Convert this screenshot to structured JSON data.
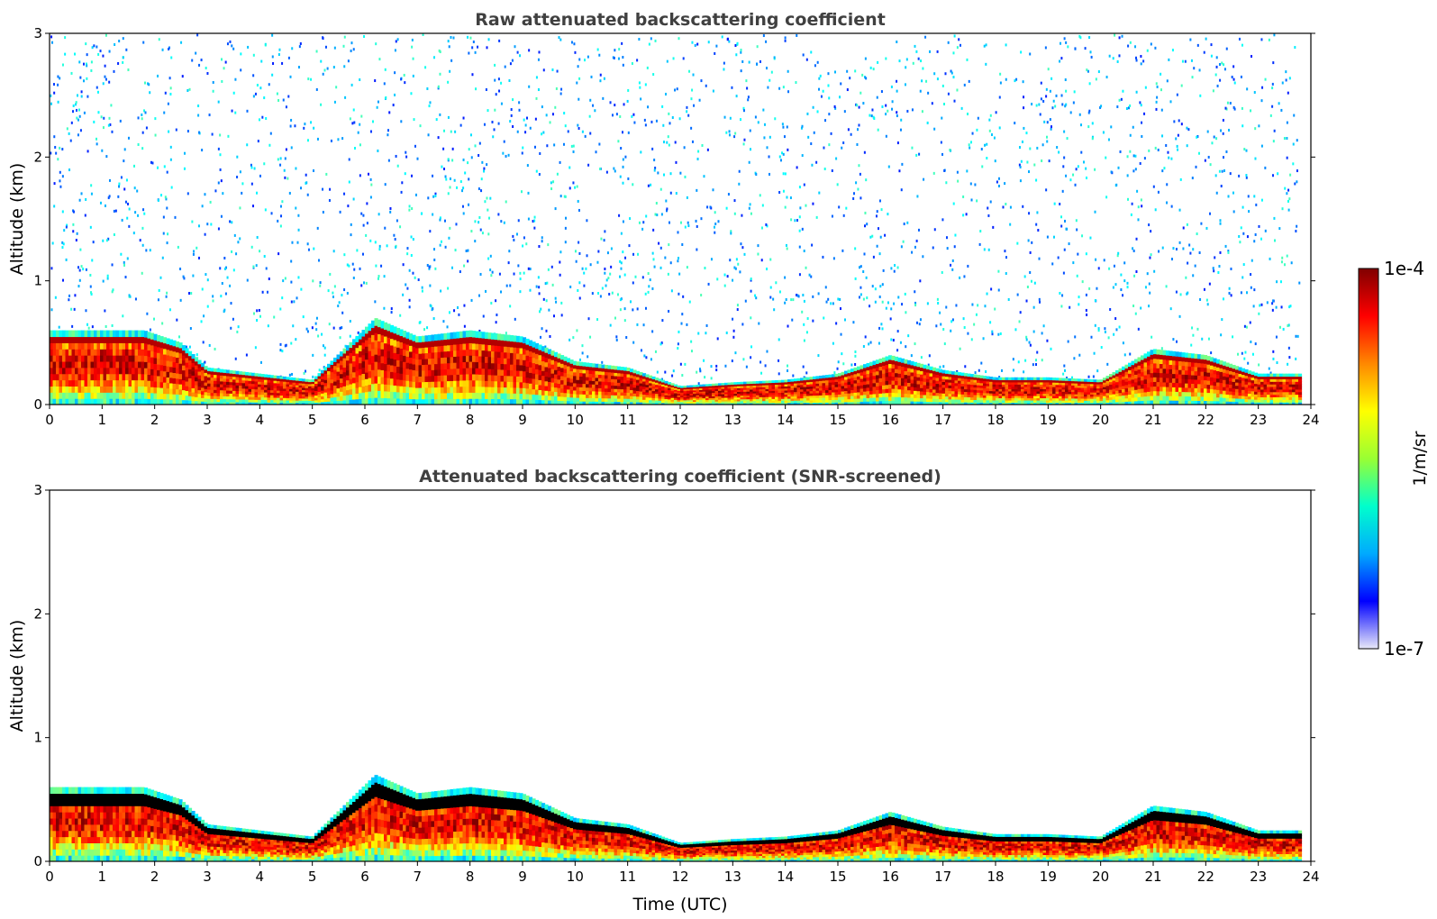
{
  "chart_data": [
    {
      "type": "heatmap",
      "title": "Raw attenuated backscattering coefficient",
      "xlabel": "",
      "ylabel": "Altitude (km)",
      "xlim": [
        0,
        24
      ],
      "ylim": [
        0,
        3
      ],
      "xticks": [
        "0",
        "1",
        "2",
        "3",
        "4",
        "5",
        "6",
        "7",
        "8",
        "9",
        "10",
        "11",
        "12",
        "13",
        "14",
        "15",
        "16",
        "17",
        "18",
        "19",
        "20",
        "21",
        "22",
        "23",
        "24"
      ],
      "yticks": [
        "0",
        "1",
        "2",
        "3"
      ],
      "colorscale": "jet (log)",
      "boundary_layer_top_km": {
        "time_utc": [
          0,
          1,
          1.8,
          2.5,
          3,
          4,
          5,
          6.2,
          7,
          8,
          9,
          10,
          11,
          12,
          13,
          14,
          15,
          16,
          17,
          18,
          19,
          20,
          21,
          22,
          23,
          23.8
        ],
        "altitude": [
          0.6,
          0.6,
          0.6,
          0.5,
          0.3,
          0.25,
          0.2,
          0.7,
          0.55,
          0.6,
          0.55,
          0.35,
          0.3,
          0.15,
          0.18,
          0.2,
          0.25,
          0.4,
          0.28,
          0.22,
          0.22,
          0.2,
          0.45,
          0.4,
          0.25,
          0.25
        ]
      },
      "noise_above_boundary_layer": true
    },
    {
      "type": "heatmap",
      "title": "Attenuated backscattering coefficient (SNR-screened)",
      "xlabel": "Time (UTC)",
      "ylabel": "Altitude (km)",
      "xlim": [
        0,
        24
      ],
      "ylim": [
        0,
        3
      ],
      "xticks": [
        "0",
        "1",
        "2",
        "3",
        "4",
        "5",
        "6",
        "7",
        "8",
        "9",
        "10",
        "11",
        "12",
        "13",
        "14",
        "15",
        "16",
        "17",
        "18",
        "19",
        "20",
        "21",
        "22",
        "23",
        "24"
      ],
      "yticks": [
        "0",
        "1",
        "2",
        "3"
      ],
      "colorscale": "jet (log)",
      "boundary_layer_top_km": {
        "time_utc": [
          0,
          1,
          1.8,
          2.5,
          3,
          4,
          5,
          6.2,
          7,
          8,
          9,
          10,
          11,
          12,
          13,
          14,
          15,
          16,
          17,
          18,
          19,
          20,
          21,
          22,
          23,
          23.8
        ],
        "altitude": [
          0.6,
          0.6,
          0.6,
          0.5,
          0.3,
          0.25,
          0.2,
          0.7,
          0.55,
          0.6,
          0.55,
          0.35,
          0.3,
          0.15,
          0.18,
          0.2,
          0.25,
          0.4,
          0.28,
          0.22,
          0.22,
          0.2,
          0.45,
          0.4,
          0.25,
          0.25
        ]
      },
      "noise_above_boundary_layer": false
    }
  ],
  "colorbar": {
    "max_label": "1e-4",
    "min_label": "1e-7",
    "label": "1/m/sr",
    "colors": [
      "#e8e8f8",
      "#0000ff",
      "#00aaff",
      "#00ffcc",
      "#99ff33",
      "#ffff00",
      "#ff8800",
      "#ff0000",
      "#800000"
    ]
  }
}
